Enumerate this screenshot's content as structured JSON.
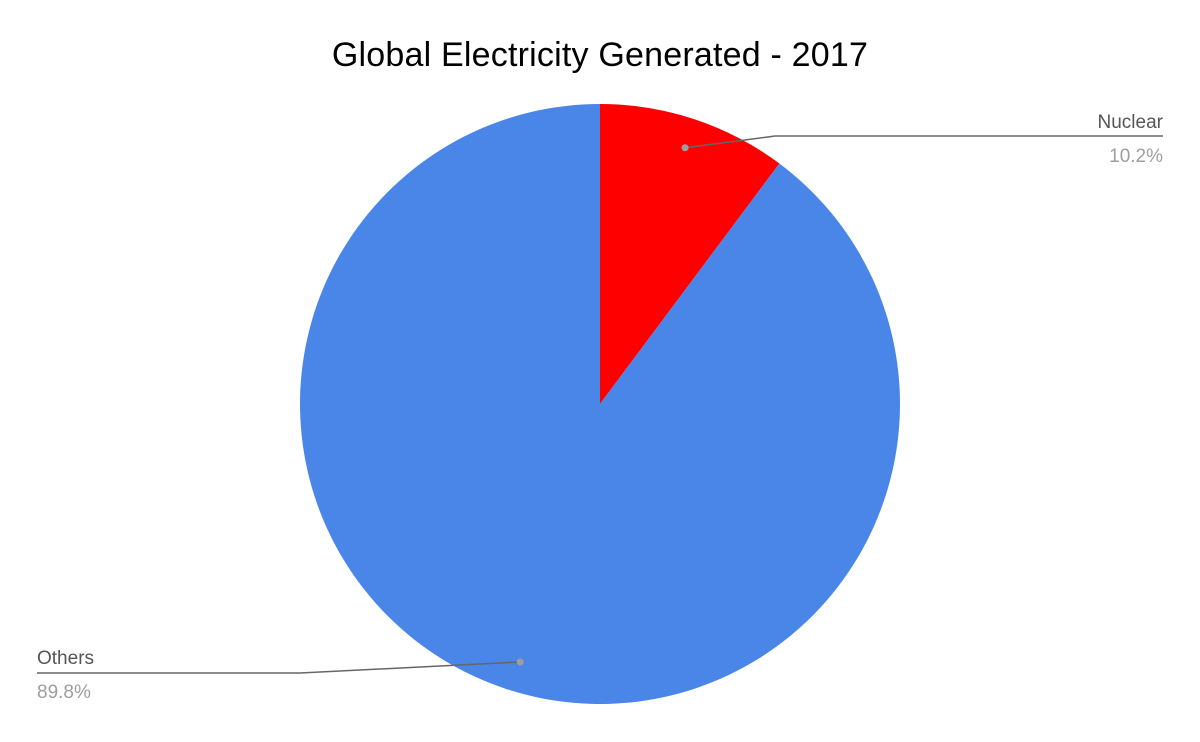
{
  "chart_data": {
    "type": "pie",
    "title": "Global Electricity Generated - 2017",
    "slices": [
      {
        "label": "Nuclear",
        "value": 10.2,
        "display": "10.2%",
        "color": "#ff0000"
      },
      {
        "label": "Others",
        "value": 89.8,
        "display": "89.8%",
        "color": "#4a86e8"
      }
    ],
    "legend": "none",
    "label_style": "callout"
  },
  "colors": {
    "leader_line": "#666666",
    "leader_dot": "#9e9e9e"
  }
}
